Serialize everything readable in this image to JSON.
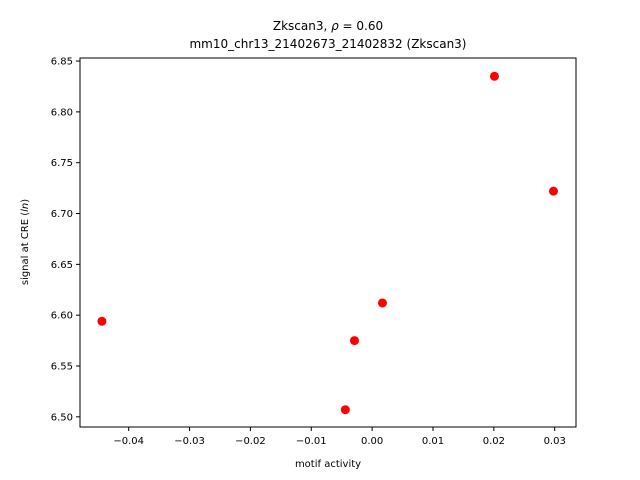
{
  "chart_data": {
    "type": "scatter",
    "title_line1": "Zkscan3, ρ = 0.60",
    "title_line2": "mm10_chr13_21402673_21402832 (Zkscan3)",
    "xlabel": "motif activity",
    "ylabel": "signal at CRE (ln)",
    "xlim": [
      -0.048,
      0.0335
    ],
    "ylim": [
      6.49,
      6.853
    ],
    "xticks": [
      -0.04,
      -0.03,
      -0.02,
      -0.01,
      0.0,
      0.01,
      0.02,
      0.03
    ],
    "xtick_labels": [
      "−0.04",
      "−0.03",
      "−0.02",
      "−0.01",
      "0.00",
      "0.01",
      "0.02",
      "0.03"
    ],
    "yticks": [
      6.5,
      6.55,
      6.6,
      6.65,
      6.7,
      6.75,
      6.8,
      6.85
    ],
    "ytick_labels": [
      "6.50",
      "6.55",
      "6.60",
      "6.65",
      "6.70",
      "6.75",
      "6.80",
      "6.85"
    ],
    "grid": false,
    "point_color": "#ff0000",
    "points": [
      {
        "x": -0.0444,
        "y": 6.594
      },
      {
        "x": -0.0044,
        "y": 6.507
      },
      {
        "x": -0.0029,
        "y": 6.575
      },
      {
        "x": 0.0017,
        "y": 6.612
      },
      {
        "x": 0.0201,
        "y": 6.835
      },
      {
        "x": 0.0298,
        "y": 6.722
      }
    ]
  }
}
